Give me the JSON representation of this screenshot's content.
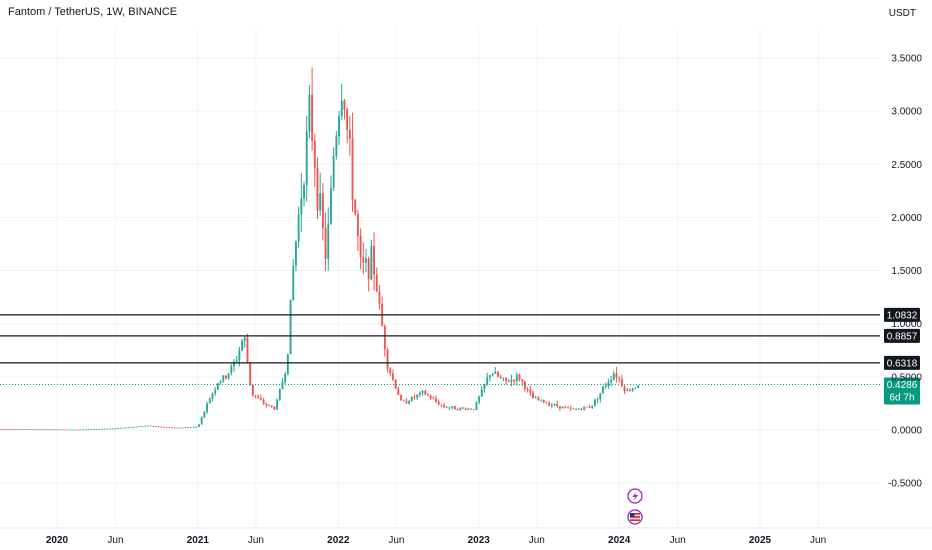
{
  "header": {
    "symbol_title": "Fantom / TetherUS, 1W, BINANCE",
    "currency": "USDT"
  },
  "colors": {
    "up": "#26a69a",
    "down": "#ef5350",
    "grid": "#f0f3fa",
    "line": "#131722",
    "price_badge": "#089981"
  },
  "chart_data": {
    "type": "candlestick",
    "title": "Fantom / TetherUS, 1W, BINANCE",
    "ylim": [
      -0.7,
      3.9
    ],
    "y_ticks": [
      "3.5000",
      "3.0000",
      "2.5000",
      "2.0000",
      "1.5000",
      "1.0000",
      "0.5000",
      "0.0000",
      "-0.5000"
    ],
    "y_tick_values": [
      3.5,
      3.0,
      2.5,
      2.0,
      1.5,
      1.0,
      0.5,
      0.0,
      -0.5
    ],
    "x_ticks": [
      {
        "label": "2020",
        "date": "2020-01-01",
        "year": true
      },
      {
        "label": "Jun",
        "date": "2020-06-01",
        "year": false
      },
      {
        "label": "2021",
        "date": "2021-01-01",
        "year": true
      },
      {
        "label": "Jun",
        "date": "2021-06-01",
        "year": false
      },
      {
        "label": "2022",
        "date": "2022-01-01",
        "year": true
      },
      {
        "label": "Jun",
        "date": "2022-06-01",
        "year": false
      },
      {
        "label": "2023",
        "date": "2023-01-01",
        "year": true
      },
      {
        "label": "Jun",
        "date": "2023-06-01",
        "year": false
      },
      {
        "label": "2024",
        "date": "2024-01-01",
        "year": true
      },
      {
        "label": "Jun",
        "date": "2024-06-01",
        "year": false
      },
      {
        "label": "2025",
        "date": "2025-01-01",
        "year": true
      },
      {
        "label": "Jun",
        "date": "2025-06-01",
        "year": false
      }
    ],
    "horizontal_levels": [
      {
        "value": 1.0832,
        "label": "1.0832"
      },
      {
        "value": 0.8857,
        "label": "0.8857"
      },
      {
        "value": 0.6318,
        "label": "0.6318"
      }
    ],
    "last_price": {
      "value": 0.4286,
      "label": "0.4286",
      "countdown": "6d 7h"
    },
    "price_path": [
      [
        "2019-06-10",
        0.01
      ],
      [
        "2020-03-01",
        0.004
      ],
      [
        "2020-06-01",
        0.015
      ],
      [
        "2020-08-20",
        0.04
      ],
      [
        "2020-11-01",
        0.02
      ],
      [
        "2021-01-01",
        0.03
      ],
      [
        "2021-02-01",
        0.3
      ],
      [
        "2021-02-22",
        0.45
      ],
      [
        "2021-03-15",
        0.5
      ],
      [
        "2021-04-10",
        0.65
      ],
      [
        "2021-05-01",
        0.9
      ],
      [
        "2021-05-20",
        0.35
      ],
      [
        "2021-06-20",
        0.25
      ],
      [
        "2021-07-20",
        0.2
      ],
      [
        "2021-08-20",
        0.6
      ],
      [
        "2021-09-05",
        1.5
      ],
      [
        "2021-10-01",
        2.4
      ],
      [
        "2021-10-20",
        3.0
      ],
      [
        "2021-11-10",
        2.2
      ],
      [
        "2021-12-01",
        1.6
      ],
      [
        "2021-12-22",
        2.7
      ],
      [
        "2022-01-12",
        3.3
      ],
      [
        "2022-02-01",
        2.5
      ],
      [
        "2022-03-01",
        1.5
      ],
      [
        "2022-04-01",
        1.6
      ],
      [
        "2022-04-20",
        1.1
      ],
      [
        "2022-05-10",
        0.6
      ],
      [
        "2022-06-15",
        0.25
      ],
      [
        "2022-08-10",
        0.35
      ],
      [
        "2022-10-01",
        0.22
      ],
      [
        "2022-11-15",
        0.2
      ],
      [
        "2022-12-20",
        0.2
      ],
      [
        "2023-02-01",
        0.55
      ],
      [
        "2023-03-10",
        0.45
      ],
      [
        "2023-04-15",
        0.5
      ],
      [
        "2023-05-20",
        0.3
      ],
      [
        "2023-07-01",
        0.25
      ],
      [
        "2023-09-01",
        0.19
      ],
      [
        "2023-10-20",
        0.22
      ],
      [
        "2023-12-01",
        0.45
      ],
      [
        "2023-12-20",
        0.55
      ],
      [
        "2024-01-20",
        0.36
      ],
      [
        "2024-02-20",
        0.43
      ]
    ]
  }
}
